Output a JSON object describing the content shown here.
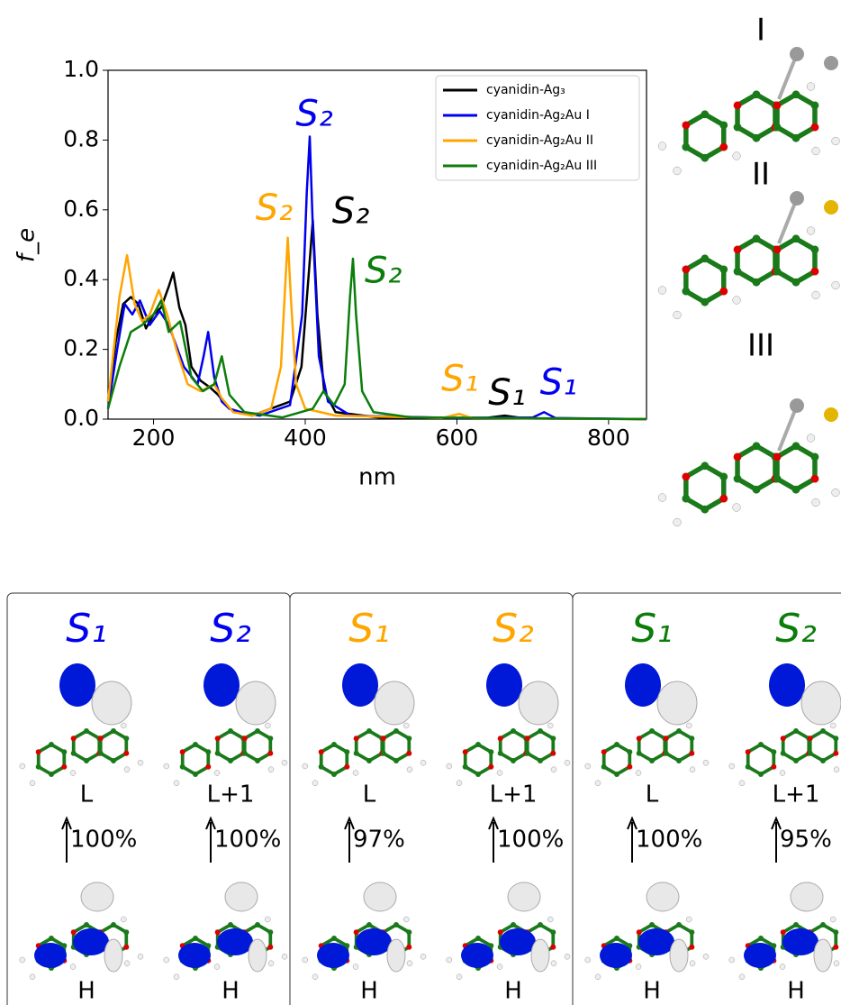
{
  "chart_data": {
    "type": "line",
    "ylabel": "f_e",
    "xlabel": "nm",
    "xlim": [
      140,
      850
    ],
    "xticks": [
      200,
      400,
      600,
      800
    ],
    "ylim": [
      0,
      1.0
    ],
    "yticks": [
      {
        "value": 0,
        "label": "0.0"
      },
      {
        "value": 0.2,
        "label": "0.2"
      },
      {
        "value": 0.4,
        "label": "0.4"
      },
      {
        "value": 0.6,
        "label": "0.6"
      },
      {
        "value": 0.8,
        "label": "0.8"
      },
      {
        "value": 1.0,
        "label": "1.0"
      }
    ],
    "legend": "upper right",
    "series": [
      {
        "name": "cyanidin-Ag₃",
        "color": "#000000",
        "x": [
          140,
          150,
          160,
          170,
          180,
          190,
          200,
          210,
          220,
          226,
          234,
          242,
          250,
          262,
          275,
          285,
          300,
          330,
          380,
          395,
          404,
          410,
          416,
          425,
          440,
          500,
          640,
          663,
          690,
          850
        ],
        "values": [
          0.05,
          0.22,
          0.33,
          0.35,
          0.33,
          0.26,
          0.3,
          0.32,
          0.38,
          0.42,
          0.32,
          0.27,
          0.15,
          0.11,
          0.09,
          0.07,
          0.03,
          0.01,
          0.05,
          0.15,
          0.4,
          0.57,
          0.3,
          0.08,
          0.02,
          0.004,
          0.004,
          0.01,
          0.002,
          0
        ]
      },
      {
        "name": "cyanidin-Ag₂Au I",
        "color": "#0000ee",
        "x": [
          140,
          152,
          162,
          172,
          182,
          195,
          208,
          220,
          240,
          258,
          266,
          272,
          280,
          290,
          300,
          315,
          340,
          380,
          396,
          402,
          406,
          410,
          418,
          430,
          460,
          600,
          700,
          715,
          730,
          850
        ],
        "values": [
          0.03,
          0.2,
          0.33,
          0.3,
          0.34,
          0.27,
          0.31,
          0.27,
          0.15,
          0.1,
          0.18,
          0.25,
          0.12,
          0.05,
          0.03,
          0.02,
          0.01,
          0.04,
          0.3,
          0.65,
          0.81,
          0.55,
          0.18,
          0.05,
          0.01,
          0.003,
          0.005,
          0.02,
          0.003,
          0
        ]
      },
      {
        "name": "cyanidin-Ag₂Au II",
        "color": "#ffa500",
        "x": [
          140,
          155,
          165,
          175,
          185,
          195,
          207,
          218,
          230,
          245,
          262,
          280,
          290,
          305,
          330,
          355,
          368,
          374,
          377,
          381,
          388,
          400,
          440,
          580,
          603,
          620,
          850
        ],
        "values": [
          0.05,
          0.35,
          0.47,
          0.33,
          0.28,
          0.3,
          0.37,
          0.3,
          0.2,
          0.1,
          0.08,
          0.1,
          0.06,
          0.02,
          0.01,
          0.03,
          0.15,
          0.4,
          0.52,
          0.35,
          0.1,
          0.03,
          0.01,
          0.003,
          0.015,
          0.003,
          0
        ]
      },
      {
        "name": "cyanidin-Ag₂Au III",
        "color": "#0a7d0a",
        "x": [
          140,
          155,
          170,
          185,
          200,
          210,
          220,
          235,
          250,
          265,
          280,
          290,
          300,
          320,
          370,
          410,
          424,
          438,
          452,
          459,
          463,
          467,
          475,
          490,
          540,
          850
        ],
        "values": [
          0.03,
          0.15,
          0.25,
          0.27,
          0.3,
          0.34,
          0.25,
          0.28,
          0.12,
          0.08,
          0.1,
          0.18,
          0.07,
          0.02,
          0.005,
          0.03,
          0.08,
          0.04,
          0.1,
          0.35,
          0.46,
          0.3,
          0.08,
          0.02,
          0.005,
          0
        ]
      }
    ],
    "annotations": [
      {
        "text": "S₂",
        "x": 412,
        "y": 0.87,
        "color": "#0000ee"
      },
      {
        "text": "S₂",
        "x": 359,
        "y": 0.6,
        "color": "#ffa500"
      },
      {
        "text": "S₂",
        "x": 460,
        "y": 0.59,
        "color": "#000000"
      },
      {
        "text": "S₂",
        "x": 503,
        "y": 0.42,
        "color": "#0a7d0a"
      },
      {
        "text": "S₁",
        "x": 604,
        "y": 0.11,
        "color": "#ffa500"
      },
      {
        "text": "S₁",
        "x": 666,
        "y": 0.07,
        "color": "#000000"
      },
      {
        "text": "S₁",
        "x": 734,
        "y": 0.1,
        "color": "#0000ee"
      }
    ]
  },
  "isomers": [
    "I",
    "II",
    "III"
  ],
  "panels": [
    {
      "color": "#0000ee",
      "states": [
        "S₁",
        "S₂"
      ],
      "upper": [
        "L",
        "L+1"
      ],
      "percent": [
        "100%",
        "100%"
      ],
      "lower": [
        "H",
        "H"
      ]
    },
    {
      "color": "#ffa500",
      "states": [
        "S₁",
        "S₂"
      ],
      "upper": [
        "L",
        "L+1"
      ],
      "percent": [
        "97%",
        "100%"
      ],
      "lower": [
        "H",
        "H"
      ]
    },
    {
      "color": "#0a7d0a",
      "states": [
        "S₁",
        "S₂"
      ],
      "upper": [
        "L",
        "L+1"
      ],
      "percent": [
        "100%",
        "95%"
      ],
      "lower": [
        "H",
        "H"
      ]
    }
  ]
}
